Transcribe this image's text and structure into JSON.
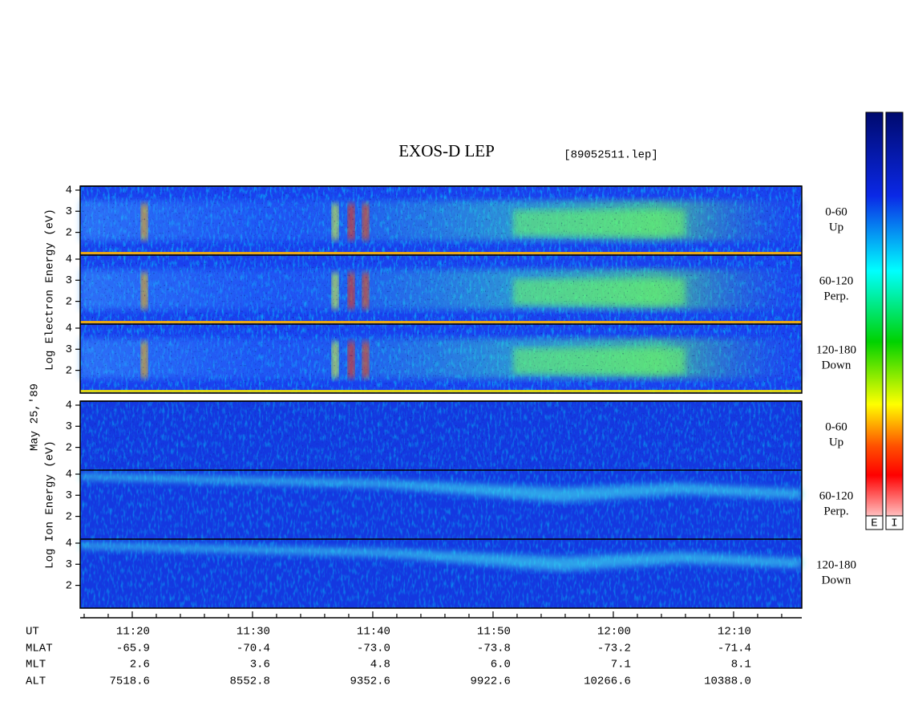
{
  "chart_data": {
    "type": "spectrogram",
    "title": "EXOS-D LEP",
    "file": "[89052511.lep]",
    "date": "May 25,'89",
    "colorbar_labels": [
      "E",
      "I"
    ],
    "panels": [
      {
        "ylabel": "Log   Electron   Energy (eV)",
        "rows": [
          {
            "label": "0-60",
            "sublabel": "Up"
          },
          {
            "label": "60-120",
            "sublabel": "Perp."
          },
          {
            "label": "120-180",
            "sublabel": "Down"
          }
        ]
      },
      {
        "ylabel": "Log   Ion   Energy (eV)",
        "rows": [
          {
            "label": "0-60",
            "sublabel": "Up"
          },
          {
            "label": "60-120",
            "sublabel": "Perp."
          },
          {
            "label": "120-180",
            "sublabel": "Down"
          }
        ]
      }
    ],
    "ylim": [
      0.92,
      4.19
    ],
    "yticks": [
      2,
      3,
      4
    ],
    "xlim": [
      675.67,
      735.67
    ],
    "xticks": [
      {
        "value": 680,
        "label": "11:20"
      },
      {
        "value": 690,
        "label": "11:30"
      },
      {
        "value": 700,
        "label": "11:40"
      },
      {
        "value": 710,
        "label": "11:50"
      },
      {
        "value": 720,
        "label": "12:00"
      },
      {
        "value": 730,
        "label": "12:10"
      }
    ],
    "xminorticks": [
      676,
      678,
      682,
      684,
      686,
      688,
      692,
      694,
      696,
      698,
      702,
      704,
      706,
      708,
      712,
      714,
      716,
      718,
      722,
      724,
      726,
      728,
      732,
      734
    ],
    "ephemeris": {
      "labels": [
        "UT",
        "MLAT",
        "MLT",
        "ALT"
      ],
      "rows": [
        [
          "-65.9",
          "-70.4",
          "-73.0",
          "-73.8",
          "-73.2",
          "-71.4"
        ],
        [
          "2.6",
          "3.6",
          "4.8",
          "6.0",
          "7.1",
          "8.1"
        ],
        [
          "7518.6",
          "8552.8",
          "9352.6",
          "9922.6",
          "10266.6",
          "10388.0"
        ]
      ]
    }
  }
}
